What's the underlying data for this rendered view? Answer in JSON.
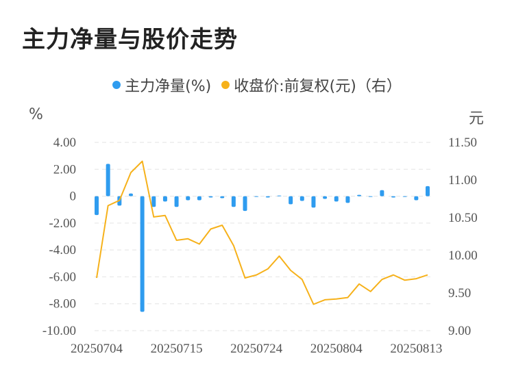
{
  "title": "主力净量与股价走势",
  "legend": {
    "bar_label": "主力净量(%)",
    "line_label": "收盘价:前复权(元)（右）"
  },
  "units": {
    "left": "%",
    "right": "元"
  },
  "colors": {
    "bar": "#2f9cef",
    "line": "#f6b11a",
    "grid": "#e3e3e3"
  },
  "chart_data": {
    "type": "bar+line",
    "x_ticks": [
      "20250704",
      "20250715",
      "20250724",
      "20250804",
      "20250813"
    ],
    "left_axis": {
      "min": -10,
      "max": 4,
      "ticks": [
        "4.00",
        "2.00",
        "0",
        "-2.00",
        "-4.00",
        "-6.00",
        "-8.00",
        "-10.00"
      ]
    },
    "right_axis": {
      "min": 9.0,
      "max": 11.5,
      "ticks": [
        "11.50",
        "11.00",
        "10.50",
        "10.00",
        "9.50",
        "9.00"
      ]
    },
    "series": [
      {
        "name": "主力净量(%)",
        "type": "bar",
        "axis": "left",
        "values": [
          -1.4,
          2.4,
          -0.7,
          0.2,
          -8.6,
          -0.8,
          -0.4,
          -0.8,
          -0.3,
          -0.3,
          -0.1,
          -0.15,
          -0.8,
          -1.1,
          -0.05,
          -0.1,
          0.05,
          -0.6,
          -0.35,
          -0.85,
          -0.2,
          -0.4,
          -0.5,
          0.1,
          -0.05,
          0.45,
          -0.1,
          -0.05,
          -0.3,
          0.75
        ]
      },
      {
        "name": "收盘价:前复权(元)（右）",
        "type": "line",
        "axis": "right",
        "values": [
          9.7,
          10.66,
          10.73,
          11.1,
          11.25,
          10.51,
          10.53,
          10.2,
          10.22,
          10.15,
          10.35,
          10.4,
          10.13,
          9.7,
          9.74,
          9.82,
          9.99,
          9.8,
          9.68,
          9.35,
          9.41,
          9.42,
          9.44,
          9.62,
          9.52,
          9.68,
          9.74,
          9.67,
          9.69,
          9.74
        ]
      }
    ]
  }
}
